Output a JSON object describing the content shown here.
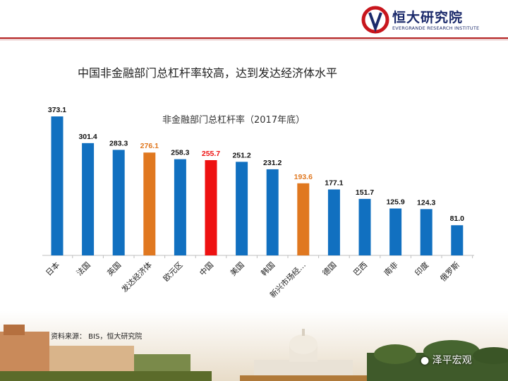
{
  "header": {
    "logo_cn": "恒大研究院",
    "logo_en": "EVERGRANDE RESEARCH INSTITUTE"
  },
  "main_title": "中国非金融部门总杠杆率较高，达到发达经济体水平",
  "source": "资料来源： BIS，恒大研究院",
  "watermark": "泽平宏观",
  "colors": {
    "blue": "#1170c0",
    "orange": "#e07820",
    "red": "#ee1111",
    "brand": "#b11a1a"
  },
  "chart_data": {
    "type": "bar",
    "title": "非金融部门总杠杆率（2017年底）",
    "categories": [
      "日本",
      "法国",
      "英国",
      "发达经济体",
      "欧元区",
      "中国",
      "美国",
      "韩国",
      "新兴市场经…",
      "德国",
      "巴西",
      "南非",
      "印度",
      "俄罗斯"
    ],
    "values": [
      373.1,
      301.4,
      283.3,
      276.1,
      258.3,
      255.7,
      251.2,
      231.2,
      193.6,
      177.1,
      151.7,
      125.9,
      124.3,
      81.0
    ],
    "value_labels": [
      "373.1",
      "301.4",
      "283.3",
      "276.1",
      "258.3",
      "255.7",
      "251.2",
      "231.2",
      "193.6",
      "177.1",
      "151.7",
      "125.9",
      "124.3",
      "81.0"
    ],
    "bar_colors": [
      "blue",
      "blue",
      "blue",
      "orange",
      "blue",
      "red",
      "blue",
      "blue",
      "orange",
      "blue",
      "blue",
      "blue",
      "blue",
      "blue"
    ],
    "xlabel": "",
    "ylabel": "",
    "ylim": [
      0,
      373.1
    ],
    "grid": false,
    "legend": "none"
  }
}
